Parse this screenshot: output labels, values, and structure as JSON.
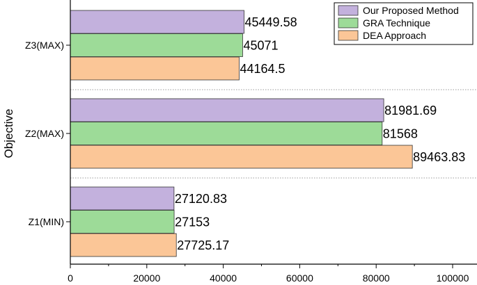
{
  "chart_data": {
    "type": "bar",
    "orientation": "horizontal",
    "ylabel": "Objective",
    "xlabel": "",
    "xlim": [
      0,
      110000
    ],
    "xticks": [
      0,
      20000,
      40000,
      60000,
      80000,
      100000
    ],
    "xtick_labels": [
      "0",
      "20000",
      "40000",
      "60000",
      "80000",
      "100000"
    ],
    "categories": [
      "Z1(MIN)",
      "Z2(MAX)",
      "Z3(MAX)"
    ],
    "series": [
      {
        "name": "Our Proposed Method",
        "color": "#c3b1dd",
        "values": [
          27120.83,
          81981.69,
          45449.58
        ],
        "labels": [
          "27120.83",
          "81981.69",
          "45449.58"
        ]
      },
      {
        "name": "GRA Technique",
        "color": "#9ddb98",
        "values": [
          27153,
          81568,
          45071
        ],
        "labels": [
          "27153",
          "81568",
          "45071"
        ]
      },
      {
        "name": "DEA Approach",
        "color": "#fbc697",
        "values": [
          27725.17,
          89463.83,
          44164.5
        ],
        "labels": [
          "27725.17",
          "89463.83",
          "44164.5"
        ]
      }
    ],
    "legend_position": "top-right",
    "grid": false,
    "separators": "dotted lines between category groups"
  }
}
